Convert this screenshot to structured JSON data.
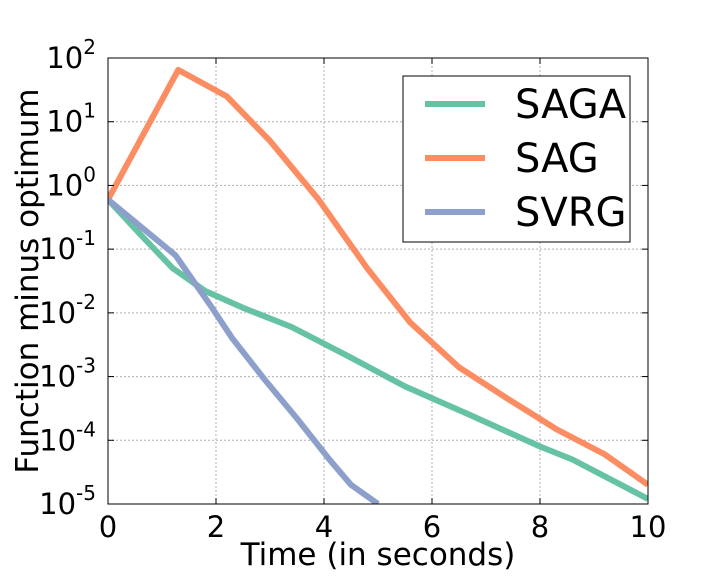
{
  "chart_data": {
    "type": "line",
    "xlabel": "Time (in seconds)",
    "ylabel": "Function minus optimum",
    "xlim": [
      0,
      10
    ],
    "ylim": [
      1e-05,
      100
    ],
    "yscale": "log",
    "grid": true,
    "legend_position": "top-right",
    "x_ticks": [
      {
        "value": 0,
        "label": "0"
      },
      {
        "value": 2,
        "label": "2"
      },
      {
        "value": 4,
        "label": "4"
      },
      {
        "value": 6,
        "label": "6"
      },
      {
        "value": 8,
        "label": "8"
      },
      {
        "value": 10,
        "label": "10"
      }
    ],
    "y_ticks": [
      {
        "value": 100,
        "base": "10",
        "exp": "2"
      },
      {
        "value": 10,
        "base": "10",
        "exp": "1"
      },
      {
        "value": 1,
        "base": "10",
        "exp": "0"
      },
      {
        "value": 0.1,
        "base": "10",
        "exp": "-1"
      },
      {
        "value": 0.01,
        "base": "10",
        "exp": "-2"
      },
      {
        "value": 0.001,
        "base": "10",
        "exp": "-3"
      },
      {
        "value": 0.0001,
        "base": "10",
        "exp": "-4"
      },
      {
        "value": 1e-05,
        "base": "10",
        "exp": "-5"
      }
    ],
    "series": [
      {
        "name": "SAGA",
        "color": "#66c2a5",
        "x": [
          0,
          0.6,
          1.2,
          1.8,
          2.5,
          3.4,
          4.4,
          5.5,
          6.7,
          8.0,
          8.6,
          9.5,
          10.0
        ],
        "y": [
          0.6,
          0.17,
          0.05,
          0.022,
          0.012,
          0.006,
          0.0022,
          0.0007,
          0.00025,
          8e-05,
          5e-05,
          2e-05,
          1.2e-05
        ]
      },
      {
        "name": "SAG",
        "color": "#fc8d62",
        "x": [
          0,
          1.3,
          2.2,
          3.0,
          3.9,
          4.8,
          5.6,
          6.5,
          7.4,
          8.3,
          9.2,
          10.0
        ],
        "y": [
          0.6,
          65,
          25,
          5,
          0.6,
          0.05,
          0.007,
          0.0014,
          0.00045,
          0.00015,
          6e-05,
          2e-05
        ]
      },
      {
        "name": "SVRG",
        "color": "#8da0cb",
        "x": [
          0,
          1.25,
          1.9,
          2.3,
          2.9,
          3.5,
          4.1,
          4.5,
          5.0
        ],
        "y": [
          0.6,
          0.08,
          0.013,
          0.004,
          0.0009,
          0.00022,
          5e-05,
          2e-05,
          1e-05
        ]
      }
    ]
  }
}
